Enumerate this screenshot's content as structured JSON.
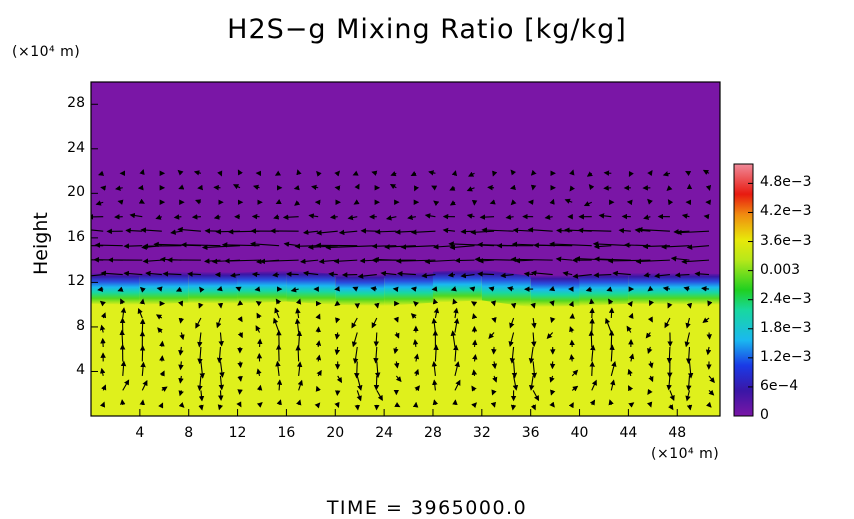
{
  "chart_data": {
    "type": "heatmap",
    "title": "H2S−g Mixing Ratio [kg/kg]",
    "ylabel": "Height",
    "xunit": "(×10⁴ m)",
    "yunit": "(×10⁴ m)",
    "footer": "TIME  =  3965000.0",
    "xlim": [
      0,
      51.5
    ],
    "ylim": [
      0,
      30
    ],
    "xticks": [
      4,
      8,
      12,
      16,
      20,
      24,
      28,
      32,
      36,
      40,
      44,
      48
    ],
    "yticks": [
      4,
      8,
      12,
      16,
      20,
      24,
      28
    ],
    "colorbar": {
      "ticks": [
        "0",
        "6e−4",
        "1.2e−3",
        "1.8e−3",
        "2.4e−3",
        "0.003",
        "3.6e−3",
        "4.2e−3",
        "4.8e−3"
      ],
      "tick_values": [
        0,
        0.0006,
        0.0012,
        0.0018,
        0.0024,
        0.003,
        0.0036,
        0.0042,
        0.0048
      ],
      "range": [
        0,
        0.0052
      ]
    },
    "field": {
      "lower_value": 0.0034,
      "upper_value": 0,
      "interface_height": [
        12.6,
        12.5,
        12.7,
        12.6,
        12.8,
        12.5,
        12.4,
        12.7,
        12.9,
        12.3,
        12.4,
        12.6,
        12.5
      ],
      "interface_x": [
        0,
        4,
        8,
        12,
        16,
        20,
        24,
        28,
        32,
        36,
        40,
        44,
        51.5
      ]
    },
    "vectors": {
      "description": "wind vectors",
      "flow": "alternating convective cells below ~10, westward jet near 15"
    }
  }
}
